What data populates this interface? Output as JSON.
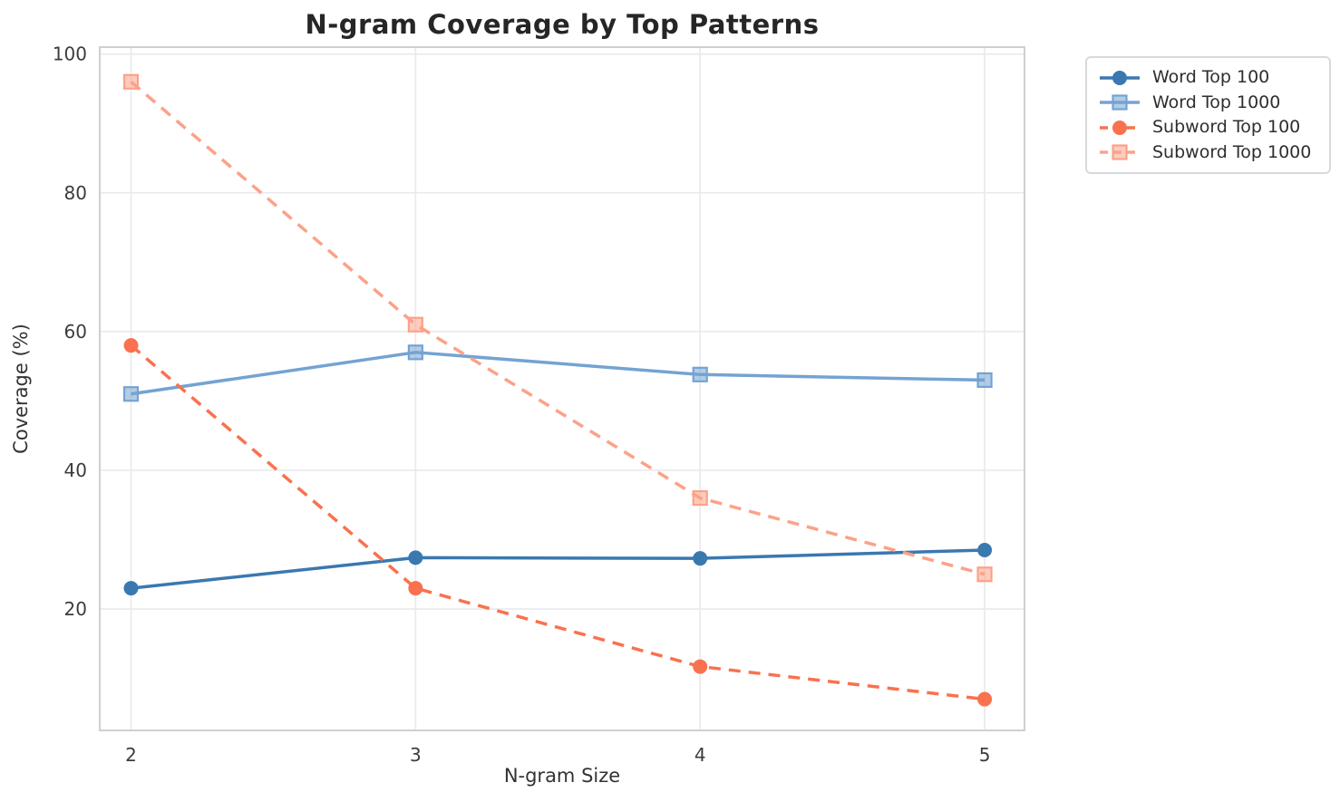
{
  "figure": {
    "background": "#ffffff"
  },
  "chart_data": {
    "type": "line",
    "title": "N-gram Coverage by Top Patterns",
    "xlabel": "N-gram Size",
    "ylabel": "Coverage (%)",
    "x": [
      2,
      3,
      4,
      5
    ],
    "xtick_labels": [
      "2",
      "3",
      "4",
      "5"
    ],
    "yticks": [
      20,
      40,
      60,
      80,
      100
    ],
    "xlim": [
      1.89,
      5.14
    ],
    "ylim": [
      2.5,
      101
    ],
    "grid": true,
    "legend_position": "outside-upper-right",
    "series": [
      {
        "name": "Word Top 100",
        "color": "#3a78b0",
        "linestyle": "solid",
        "marker": "circle",
        "values": [
          23.0,
          27.4,
          27.3,
          28.5
        ]
      },
      {
        "name": "Word Top 1000",
        "color": "#74a3d2",
        "linestyle": "solid",
        "marker": "square",
        "values": [
          51.0,
          57.0,
          53.8,
          53.0
        ]
      },
      {
        "name": "Subword Top 100",
        "color": "#f9714e",
        "linestyle": "dashed",
        "marker": "circle",
        "values": [
          58.0,
          23.0,
          11.7,
          7.0
        ]
      },
      {
        "name": "Subword Top 1000",
        "color": "#fba288",
        "linestyle": "dashed",
        "marker": "square",
        "values": [
          96.0,
          61.0,
          36.0,
          25.0
        ]
      }
    ],
    "style": {
      "grid_color": "#e9e9ee",
      "spine_color": "#cfcfd4",
      "tick_label_color": "#3c3c3c",
      "title_color": "#262626",
      "axis_label_color": "#333333",
      "legend_border_color": "#d9d9dc",
      "legend_text_color": "#2e2e2e"
    }
  }
}
